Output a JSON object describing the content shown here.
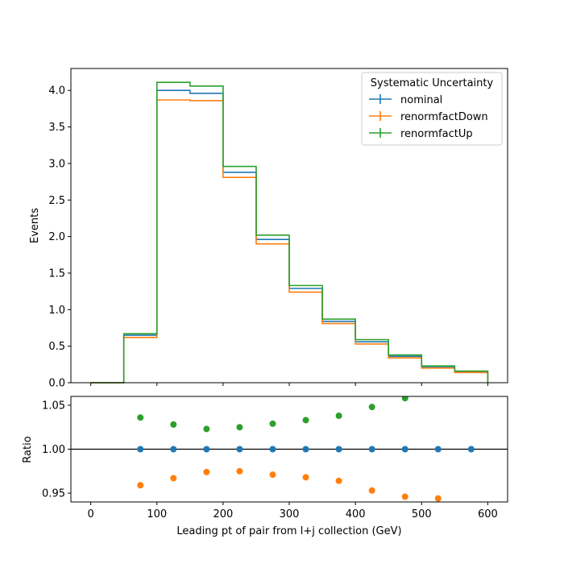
{
  "chart_data": [
    {
      "type": "line",
      "subtype": "step-histogram",
      "xlabel": "Leading pt of pair from l+j collection (GeV)",
      "ylabel": "Events",
      "xlim": [
        -30,
        630
      ],
      "ylim": [
        0,
        4.3
      ],
      "xticks": [
        0,
        100,
        200,
        300,
        400,
        500,
        600
      ],
      "xticklabels": [
        "0",
        "100",
        "200",
        "300",
        "400",
        "500",
        "600"
      ],
      "yticks": [
        0,
        0.5,
        1.0,
        1.5,
        2.0,
        2.5,
        3.0,
        3.5,
        4.0
      ],
      "yticklabels": [
        "0.0",
        "0.5",
        "1.0",
        "1.5",
        "2.0",
        "2.5",
        "3.0",
        "3.5",
        "4.0"
      ],
      "bin_edges": [
        0,
        50,
        100,
        150,
        200,
        250,
        300,
        350,
        400,
        450,
        500,
        550,
        600
      ],
      "series": [
        {
          "name": "nominal",
          "color": "#1f77b4",
          "values": [
            0.0,
            0.65,
            4.0,
            3.96,
            2.88,
            1.96,
            1.29,
            0.84,
            0.56,
            0.36,
            0.21,
            0.15
          ]
        },
        {
          "name": "renormfactDown",
          "color": "#ff7f0e",
          "values": [
            0.0,
            0.62,
            3.87,
            3.86,
            2.81,
            1.9,
            1.24,
            0.81,
            0.53,
            0.34,
            0.2,
            0.14
          ]
        },
        {
          "name": "renormfactUp",
          "color": "#2ca02c",
          "values": [
            0.0,
            0.67,
            4.11,
            4.06,
            2.96,
            2.02,
            1.33,
            0.87,
            0.59,
            0.38,
            0.23,
            0.16
          ]
        }
      ],
      "legend": {
        "title": "Systematic Uncertainty",
        "placement": "top-right"
      },
      "grid": false
    },
    {
      "type": "scatter",
      "xlabel": "Leading pt of pair from l+j collection (GeV)",
      "ylabel": "Ratio",
      "xlim": [
        -30,
        630
      ],
      "ylim": [
        0.94,
        1.06
      ],
      "xticks": [
        0,
        100,
        200,
        300,
        400,
        500,
        600
      ],
      "xticklabels": [
        "0",
        "100",
        "200",
        "300",
        "400",
        "500",
        "600"
      ],
      "yticks": [
        0.95,
        1.0,
        1.05
      ],
      "yticklabels": [
        "0.95",
        "1.00",
        "1.05"
      ],
      "reference_line": 1.0,
      "series": [
        {
          "name": "nominal",
          "color": "#1f77b4",
          "x": [
            75,
            125,
            175,
            225,
            275,
            325,
            375,
            425,
            475,
            525,
            575
          ],
          "y": [
            1.0,
            1.0,
            1.0,
            1.0,
            1.0,
            1.0,
            1.0,
            1.0,
            1.0,
            1.0,
            1.0
          ]
        },
        {
          "name": "renormfactDown",
          "color": "#ff7f0e",
          "x": [
            75,
            125,
            175,
            225,
            275,
            325,
            375,
            425,
            475,
            525
          ],
          "y": [
            0.959,
            0.967,
            0.974,
            0.975,
            0.971,
            0.968,
            0.964,
            0.953,
            0.946,
            0.944
          ]
        },
        {
          "name": "renormfactUp",
          "color": "#2ca02c",
          "x": [
            75,
            125,
            175,
            225,
            275,
            325,
            375,
            425,
            475
          ],
          "y": [
            1.036,
            1.028,
            1.023,
            1.025,
            1.029,
            1.033,
            1.038,
            1.048,
            1.058
          ]
        }
      ],
      "grid": false
    }
  ]
}
